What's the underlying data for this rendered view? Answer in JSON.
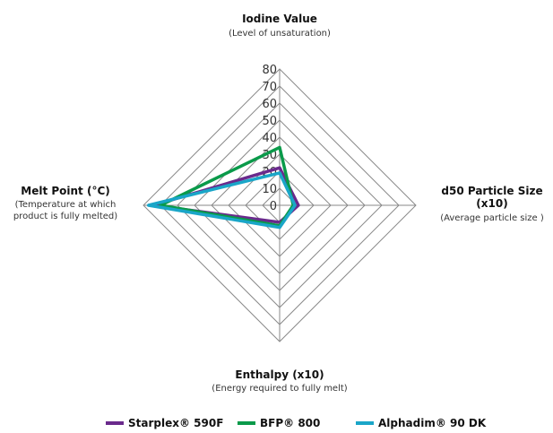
{
  "chart_data": {
    "type": "radar",
    "axes": [
      {
        "title": "Iodine Value",
        "subtitle_lines": [
          "(Level of unsaturation)"
        ]
      },
      {
        "title_lines": [
          "d50 Particle Size",
          "(x10)"
        ],
        "subtitle_lines": [
          "(Average particle size )"
        ]
      },
      {
        "title": "Enthalpy (x10)",
        "subtitle_lines": [
          "(Energy required to fully melt)"
        ]
      },
      {
        "title": "Melt Point (°C)",
        "subtitle_lines": [
          "(Temperature at which",
          "product is fully melted)"
        ]
      }
    ],
    "ticks": [
      "0",
      "10",
      "20",
      "30",
      "40",
      "50",
      "60",
      "70",
      "80"
    ],
    "rlim": [
      0,
      80
    ],
    "grid": true,
    "legend_position": "bottom",
    "series": [
      {
        "name": "Starplex® 590F",
        "color": "#6a2a8c",
        "values": [
          22,
          11,
          10,
          74
        ]
      },
      {
        "name": "BFP® 800",
        "color": "#0a9a4a",
        "values": [
          34,
          8,
          12,
          70
        ]
      },
      {
        "name": "Alphadim® 90 DK",
        "color": "#1aa6c8",
        "values": [
          19,
          9,
          13,
          77
        ]
      }
    ]
  }
}
